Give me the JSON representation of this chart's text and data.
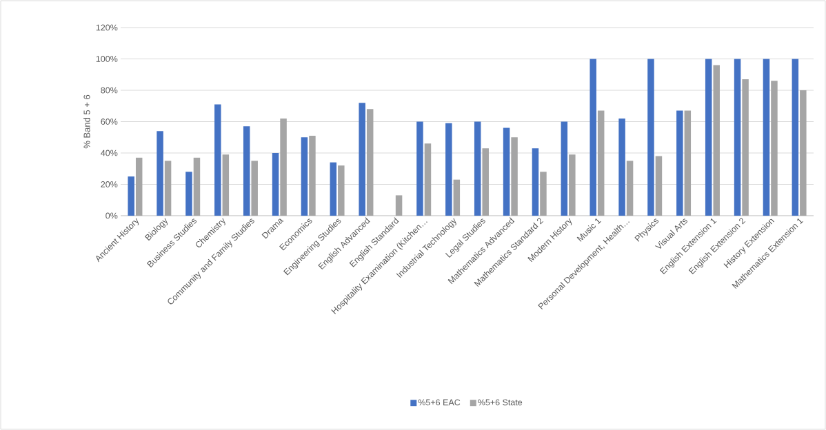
{
  "chart_data": {
    "type": "bar",
    "ylabel": "% Band 5 + 6",
    "categories": [
      "Ancient History",
      "Biology",
      "Business Studies",
      "Chemistry",
      "Community and Family Studies",
      "Drama",
      "Economics",
      "Engineering Studies",
      "English Advanced",
      "English Standard",
      "Hospitality Examination (Kitchen…",
      "Industrial Technology",
      "Legal Studies",
      "Mathematics Advanced",
      "Mathematics Standard 2",
      "Modern History",
      "Music 1",
      "Personal Development, Health…",
      "Physics",
      "Visual Arts",
      "English Extension 1",
      "English Extension 2",
      "History Extension",
      "Mathematics Extension 1"
    ],
    "series": [
      {
        "name": "%5+6 EAC",
        "color": "#4472c4",
        "values": [
          25,
          54,
          28,
          71,
          57,
          40,
          50,
          34,
          72,
          null,
          60,
          59,
          60,
          56,
          43,
          60,
          100,
          62,
          100,
          67,
          100,
          100,
          100,
          100
        ]
      },
      {
        "name": "%5+6 State",
        "color": "#a5a5a5",
        "values": [
          37,
          35,
          37,
          39,
          35,
          62,
          51,
          32,
          68,
          13,
          46,
          23,
          43,
          50,
          28,
          39,
          67,
          35,
          38,
          67,
          96,
          87,
          86,
          80
        ]
      }
    ],
    "ylim": [
      0,
      120
    ],
    "yticks": [
      {
        "value": 0,
        "label": "0%"
      },
      {
        "value": 20,
        "label": "20%"
      },
      {
        "value": 40,
        "label": "40%"
      },
      {
        "value": 60,
        "label": "60%"
      },
      {
        "value": 80,
        "label": "80%"
      },
      {
        "value": 100,
        "label": "100%"
      },
      {
        "value": 120,
        "label": "120%"
      }
    ],
    "grid": "y",
    "legend": "bottom"
  }
}
